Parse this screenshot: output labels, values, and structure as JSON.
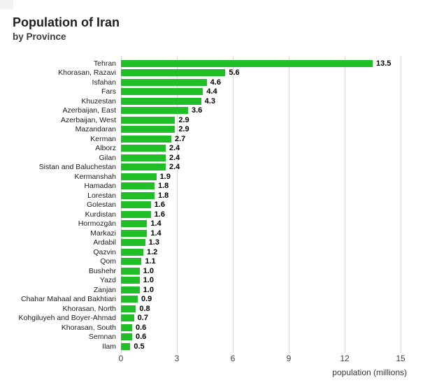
{
  "header": {
    "title": "Population of Iran",
    "subtitle": "by Province"
  },
  "axis": {
    "label": "population (millions)"
  },
  "colors": {
    "bar": "#20bf28",
    "gridline": "#d8d8d8",
    "title_text": "#212121",
    "label_text": "#1a1a1a",
    "value_text": "#000000",
    "tick_text": "#404040"
  },
  "chart_data": {
    "type": "bar",
    "orientation": "horizontal",
    "title": "Population of Iran",
    "subtitle": "by Province",
    "xlabel": "population (millions)",
    "ylabel": "",
    "xlim": [
      0,
      15
    ],
    "xticks": [
      0,
      3,
      6,
      9,
      12,
      15
    ],
    "grid": true,
    "value_labels": true,
    "categories": [
      "Tehran",
      "Khorasan, Razavi",
      "Isfahan",
      "Fars",
      "Khuzestan",
      "Azerbaijan, East",
      "Azerbaijan, West",
      "Mazandaran",
      "Kerman",
      "Alborz",
      "Gilan",
      "Sistan and Baluchestan",
      "Kermanshah",
      "Hamadan",
      "Lorestan",
      "Golestan",
      "Kurdistan",
      "Hormozgān",
      "Markazi",
      "Ardabil",
      "Qazvin",
      "Qom",
      "Bushehr",
      "Yazd",
      "Zanjan",
      "Chahar Mahaal and Bakhtiari",
      "Khorasan, North",
      "Kohgiluyeh and Boyer-Ahmad",
      "Khorasan, South",
      "Semnan",
      "Ilam"
    ],
    "values": [
      13.5,
      5.6,
      4.6,
      4.4,
      4.3,
      3.6,
      2.9,
      2.9,
      2.7,
      2.4,
      2.4,
      2.4,
      1.9,
      1.8,
      1.8,
      1.6,
      1.6,
      1.4,
      1.4,
      1.3,
      1.2,
      1.1,
      1.0,
      1.0,
      1.0,
      0.9,
      0.8,
      0.7,
      0.6,
      0.6,
      0.5
    ]
  }
}
